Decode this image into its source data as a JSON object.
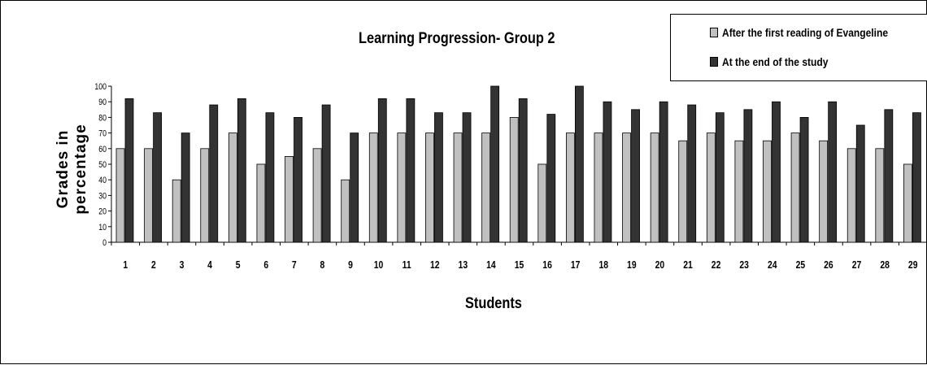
{
  "chart_data": {
    "type": "bar",
    "title": "Learning Progression- Group 2",
    "xlabel": "Students",
    "ylabel": "Grades in percentage",
    "ylim": [
      0,
      100
    ],
    "yticks": [
      0,
      10,
      20,
      30,
      40,
      50,
      60,
      70,
      80,
      90,
      100
    ],
    "categories": [
      "1",
      "2",
      "3",
      "4",
      "5",
      "6",
      "7",
      "8",
      "9",
      "10",
      "11",
      "12",
      "13",
      "14",
      "15",
      "16",
      "17",
      "18",
      "19",
      "20",
      "21",
      "22",
      "23",
      "24",
      "25",
      "26",
      "27",
      "28",
      "29"
    ],
    "series": [
      {
        "name": "After the first reading of Evangeline",
        "color": "#c0c0c0",
        "values": [
          60,
          60,
          40,
          60,
          70,
          50,
          55,
          60,
          40,
          70,
          70,
          70,
          70,
          70,
          80,
          50,
          70,
          70,
          70,
          70,
          65,
          70,
          65,
          65,
          70,
          65,
          60,
          60,
          50
        ]
      },
      {
        "name": "At the end of the study",
        "color": "#333333",
        "values": [
          92,
          83,
          70,
          88,
          92,
          83,
          80,
          88,
          70,
          92,
          92,
          83,
          83,
          100,
          92,
          82,
          100,
          90,
          85,
          90,
          88,
          83,
          85,
          90,
          80,
          90,
          75,
          85,
          83
        ]
      }
    ],
    "legend_position": "top-right",
    "grid": false
  }
}
